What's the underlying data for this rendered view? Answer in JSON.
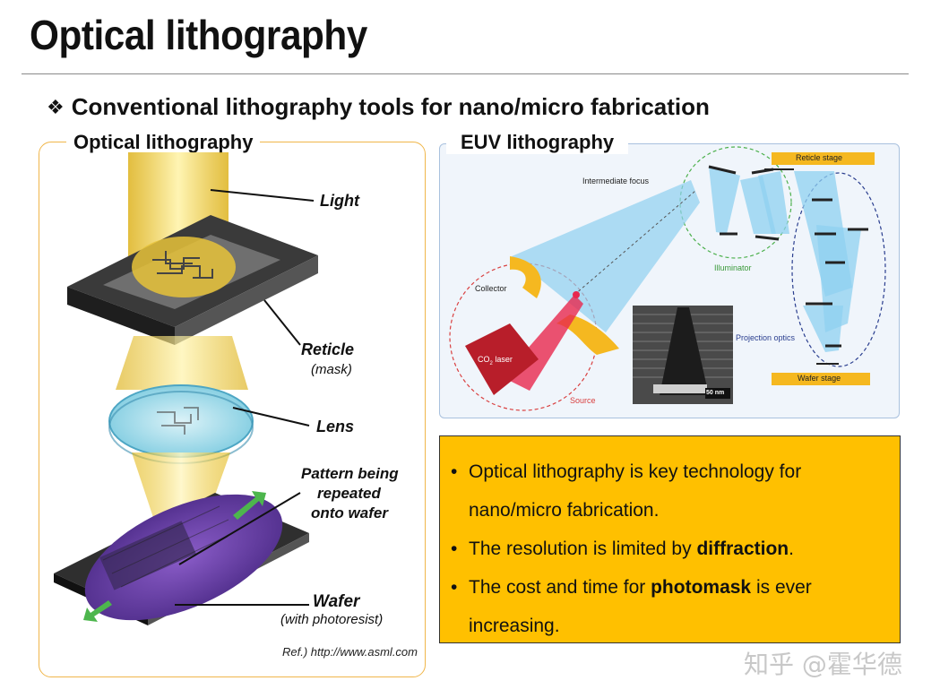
{
  "title": "Optical lithography",
  "subtitle": {
    "bullet": "❖",
    "text": "Conventional lithography tools for nano/micro fabrication"
  },
  "left_panel": {
    "heading": "Optical lithography",
    "labels": {
      "light": "Light",
      "reticle": "Reticle",
      "reticle_sub": "(mask)",
      "lens": "Lens",
      "pattern_line1": "Pattern being",
      "pattern_line2": "repeated",
      "pattern_line3": "onto wafer",
      "wafer": "Wafer",
      "wafer_sub": "(with photoresist)"
    },
    "ref_prefix": "Ref.)",
    "ref_url": "http://www.asml.com"
  },
  "right_panel": {
    "heading": "EUV lithography",
    "labels": {
      "intermediate_focus": "Intermediate focus",
      "reticle_stage": "Reticle stage",
      "illuminator": "Illuminator",
      "collector": "Collector",
      "projection_optics": "Projection optics",
      "co2_laser_main": "CO",
      "co2_laser_sub": "2",
      "co2_laser_rest": " laser",
      "source": "Source",
      "wafer_stage": "Wafer stage",
      "scale_bar": "50 nm"
    }
  },
  "notes": [
    {
      "pre": "Optical lithography is key technology for nano/micro fabrication.",
      "bold": "",
      "post": ""
    },
    {
      "pre": "The resolution is limited by ",
      "bold": "diffraction",
      "post": "."
    },
    {
      "pre": "The cost and time for ",
      "bold": "photomask",
      "post": " is ever increasing."
    }
  ],
  "watermark": "知乎 @霍华德",
  "colors": {
    "note_bg": "#ffc000",
    "left_border": "#f0b64a",
    "euv_bg": "#f0f5fb",
    "light_beam": "#f5c800",
    "wafer": "#6b3fa0"
  }
}
